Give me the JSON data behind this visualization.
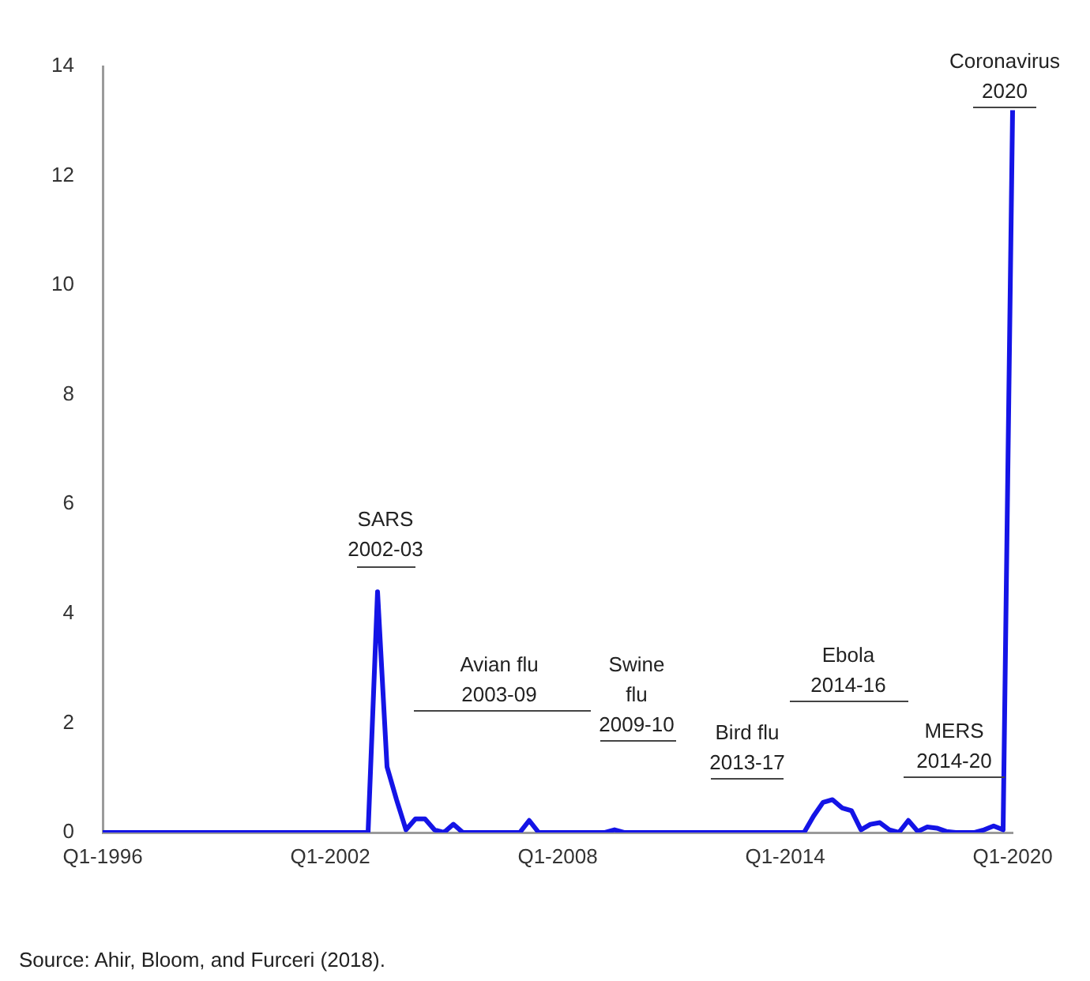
{
  "chart_data": {
    "type": "line",
    "categories": [
      "Q1-1996",
      null,
      null,
      null,
      null,
      null,
      null,
      null,
      null,
      null,
      null,
      null,
      null,
      null,
      null,
      null,
      null,
      null,
      null,
      null,
      null,
      null,
      null,
      null,
      "Q1-2002",
      null,
      null,
      null,
      null,
      null,
      null,
      null,
      null,
      null,
      null,
      null,
      null,
      null,
      null,
      null,
      null,
      null,
      null,
      null,
      null,
      null,
      null,
      null,
      "Q1-2008",
      null,
      null,
      null,
      null,
      null,
      null,
      null,
      null,
      null,
      null,
      null,
      null,
      null,
      null,
      null,
      null,
      null,
      null,
      null,
      null,
      null,
      null,
      null,
      "Q1-2014",
      null,
      null,
      null,
      null,
      null,
      null,
      null,
      null,
      null,
      null,
      null,
      null,
      null,
      null,
      null,
      null,
      null,
      null,
      null,
      null,
      null,
      null,
      null,
      "Q1-2020"
    ],
    "series": [
      {
        "color": "#1414e6",
        "values": [
          0,
          0,
          0,
          0,
          0,
          0,
          0,
          0,
          0,
          0,
          0,
          0,
          0,
          0,
          0,
          0,
          0,
          0,
          0,
          0,
          0,
          0,
          0,
          0,
          0,
          0,
          0,
          0,
          0,
          4.4,
          1.2,
          0.6,
          0.05,
          0.25,
          0.25,
          0.05,
          0,
          0.15,
          0,
          0,
          0,
          0,
          0,
          0,
          0,
          0.22,
          0,
          0,
          0,
          0,
          0,
          0,
          0,
          0,
          0.05,
          0,
          0,
          0,
          0,
          0,
          0,
          0,
          0,
          0,
          0,
          0,
          0,
          0,
          0,
          0,
          0,
          0,
          0,
          0,
          0,
          0.3,
          0.55,
          0.6,
          0.45,
          0.4,
          0.05,
          0.15,
          0.18,
          0.05,
          0,
          0.22,
          0.02,
          0.1,
          0.08,
          0.02,
          0,
          0,
          0,
          0.05,
          0.12,
          0.05,
          13.2
        ]
      }
    ],
    "ylim": [
      0,
      14
    ],
    "yticks": [
      0,
      2,
      4,
      6,
      8,
      10,
      12,
      14
    ],
    "grid": false,
    "legend": false,
    "marker": "none",
    "line_style": "solid",
    "annotations": [
      "SARS\n2002-03",
      "Avian flu\n2003-09",
      "Swine\nflu\n2009-10",
      "Bird flu\n2013-17",
      "Ebola\n2014-16",
      "MERS\n2014-20",
      "Coronavirus\n2020",
      "Source: Ahir, Bloom, and Furceri (2018)."
    ]
  }
}
